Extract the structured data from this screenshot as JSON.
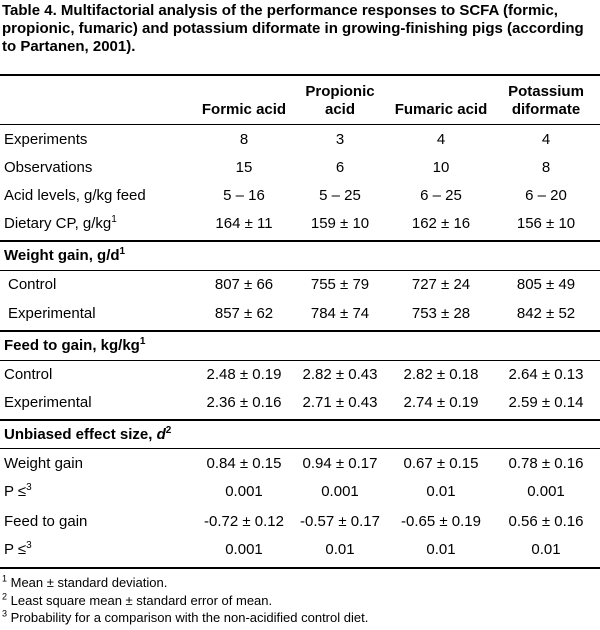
{
  "table": {
    "caption": "Table 4. Multifactorial analysis of the performance responses to SCFA (formic, propionic, fumaric) and potassium diformate in growing-finishing pigs (according to Partanen, 2001).",
    "columns": {
      "c1": "Formic acid",
      "c2_line1": "Propionic",
      "c2_line2": "acid",
      "c3": "Fumaric acid",
      "c4_line1": "Potassium",
      "c4_line2": "diformate"
    },
    "general": [
      {
        "label": "Experiments",
        "sup": "",
        "values": [
          "8",
          "3",
          "4",
          "4"
        ]
      },
      {
        "label": "Observations",
        "sup": "",
        "values": [
          "15",
          "6",
          "10",
          "8"
        ]
      },
      {
        "label": "Acid levels, g/kg feed",
        "sup": "",
        "values": [
          "5 – 16",
          "5 – 25",
          "6 – 25",
          "6 – 20"
        ]
      },
      {
        "label": "Dietary CP, g/kg",
        "sup": "1",
        "values": [
          "164 ± 11",
          "159 ± 10",
          "162 ± 16",
          "156 ± 10"
        ]
      }
    ],
    "weight_gain": {
      "title": "Weight gain, g/d",
      "sup": "1",
      "rows": [
        {
          "label": "Control",
          "values": [
            "807 ± 66",
            "755 ± 79",
            "727 ± 24",
            "805 ± 49"
          ]
        },
        {
          "label": "Experimental",
          "values": [
            "857 ± 62",
            "784 ± 74",
            "753 ± 28",
            "842 ± 52"
          ]
        }
      ]
    },
    "feed_to_gain": {
      "title": "Feed to gain, kg/kg",
      "sup": "1",
      "rows": [
        {
          "label": "Control",
          "values": [
            "2.48 ± 0.19",
            "2.82 ± 0.43",
            "2.82 ± 0.18",
            "2.64 ± 0.13"
          ]
        },
        {
          "label": "Experimental",
          "values": [
            "2.36 ± 0.16",
            "2.71 ± 0.43",
            "2.74 ± 0.19",
            "2.59 ± 0.14"
          ]
        }
      ]
    },
    "effect_size": {
      "title": "Unbiased effect size, ",
      "title_symbol": "d",
      "sup": "2",
      "rows": [
        {
          "label": "Weight gain",
          "sup": "",
          "values": [
            "0.84 ± 0.15",
            "0.94 ± 0.17",
            "0.67 ± 0.15",
            "0.78 ± 0.16"
          ]
        },
        {
          "label": "P ≤",
          "sup": "3",
          "values": [
            "0.001",
            "0.001",
            "0.01",
            "0.001"
          ]
        },
        {
          "label": "Feed to gain",
          "sup": "",
          "values": [
            "-0.72 ± 0.12",
            "-0.57 ± 0.17",
            "-0.65 ± 0.19",
            "0.56 ± 0.16"
          ]
        },
        {
          "label": "P ≤",
          "sup": "3",
          "values": [
            "0.001",
            "0.01",
            "0.01",
            "0.01"
          ]
        }
      ]
    },
    "footnotes": [
      {
        "marker": "1",
        "text": " Mean ± standard deviation."
      },
      {
        "marker": "2",
        "text": " Least square mean ± standard error of mean."
      },
      {
        "marker": "3",
        "text": " Probability for a comparison with the non-acidified control diet."
      }
    ]
  }
}
